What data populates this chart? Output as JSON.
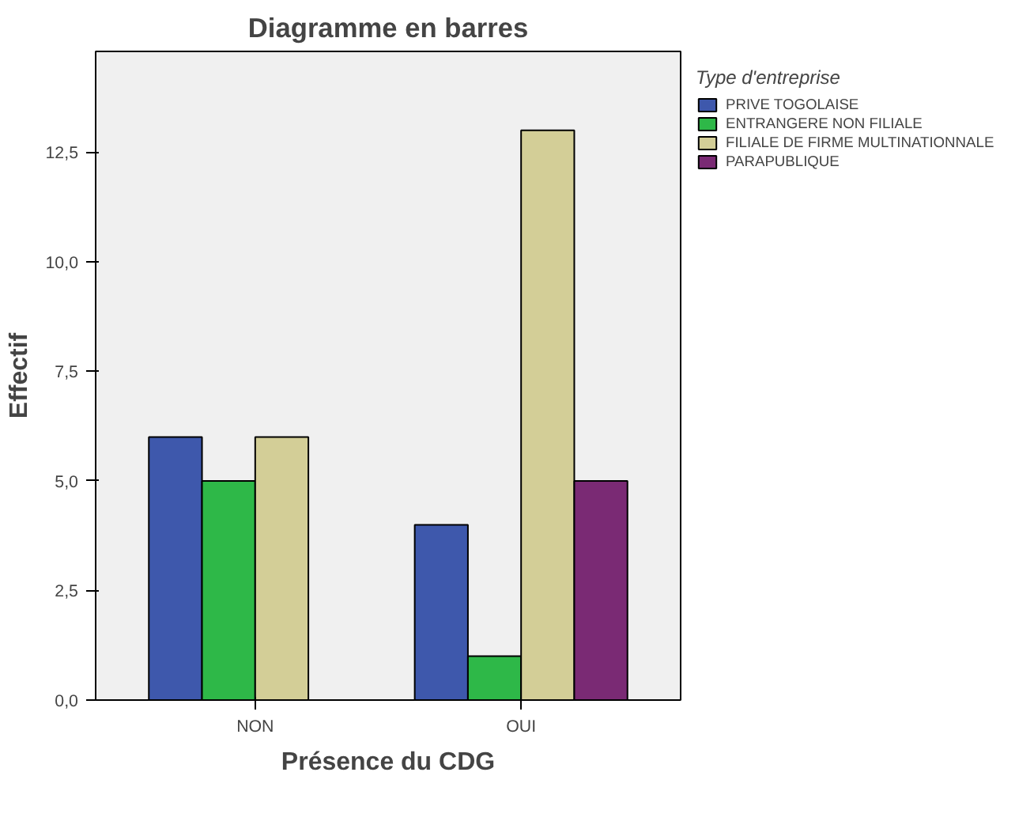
{
  "chart_data": {
    "type": "bar",
    "title": "Diagramme en barres",
    "xlabel": "Présence du CDG",
    "ylabel": "Effectif",
    "legend_title": "Type d'entreprise",
    "categories": [
      "NON",
      "OUI"
    ],
    "series": [
      {
        "name": "PRIVE TOGOLAISE",
        "color": "#3e58ac",
        "values": [
          6,
          4
        ]
      },
      {
        "name": "ENTRANGERE NON FILIALE",
        "color": "#2eb848",
        "values": [
          5,
          1
        ]
      },
      {
        "name": "FILIALE DE FIRME MULTINATIONNALE",
        "color": "#d3ce97",
        "values": [
          6,
          13
        ]
      },
      {
        "name": "PARAPUBLIQUE",
        "color": "#7a2a74",
        "values": [
          null,
          5
        ]
      }
    ],
    "ylim": [
      0,
      14.8
    ],
    "yticks": [
      {
        "value": 0,
        "label": "0,0"
      },
      {
        "value": 2.5,
        "label": "2,5"
      },
      {
        "value": 5,
        "label": "5,0"
      },
      {
        "value": 7.5,
        "label": "7,5"
      },
      {
        "value": 10,
        "label": "10,0"
      },
      {
        "value": 12.5,
        "label": "12,5"
      }
    ],
    "grid": false,
    "legend": "right"
  }
}
